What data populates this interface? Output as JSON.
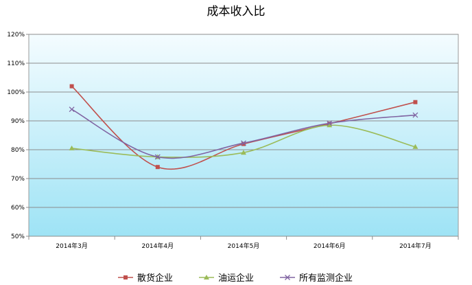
{
  "chart_data": {
    "type": "line",
    "title": "成本收入比",
    "xlabel": "",
    "ylabel": "",
    "categories": [
      "2014年3月",
      "2014年4月",
      "2014年5月",
      "2014年6月",
      "2014年7月"
    ],
    "ylim": [
      50,
      120
    ],
    "yticks": [
      "50%",
      "60%",
      "70%",
      "80%",
      "90%",
      "100%",
      "110%",
      "120%"
    ],
    "grid": true,
    "legend_position": "bottom",
    "series": [
      {
        "name": "散货企业",
        "color": "#C0504D",
        "marker": "square",
        "values": [
          102,
          74,
          82,
          89,
          96.5
        ]
      },
      {
        "name": "油运企业",
        "color": "#9BBB59",
        "marker": "triangle",
        "values": [
          80.5,
          77.5,
          79,
          88.5,
          81
        ]
      },
      {
        "name": "所有监测企业",
        "color": "#8064A2",
        "marker": "x",
        "values": [
          94,
          77.5,
          82.3,
          89.2,
          92
        ]
      }
    ]
  }
}
